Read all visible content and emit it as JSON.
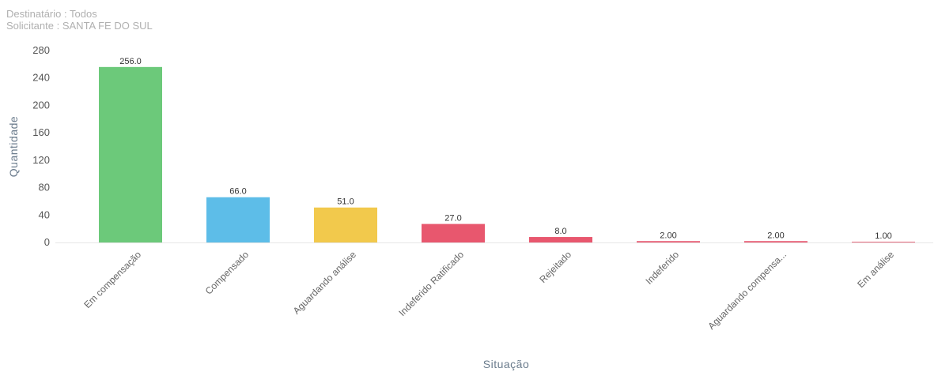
{
  "filters": {
    "recipient_label": "Destinatário",
    "recipient_value": "Todos",
    "requester_label": "Solicitante",
    "requester_value": "SANTA FE DO SUL"
  },
  "chart_data": {
    "type": "bar",
    "categories": [
      "Em compensação",
      "Compensado",
      "Aguardando análise",
      "Indeferido Ratificado",
      "Rejeitado",
      "Indeferido",
      "Aguardando compensa...",
      "Em análise"
    ],
    "values": [
      256.0,
      66.0,
      51.0,
      27.0,
      8.0,
      2.0,
      2.0,
      1.0
    ],
    "data_labels": [
      "256.0",
      "66.0",
      "51.0",
      "27.0",
      "8.0",
      "2.00",
      "2.00",
      "1.00"
    ],
    "colors": [
      "#6cc97a",
      "#5dbde8",
      "#f2c94c",
      "#e8576e",
      "#e8576e",
      "#e8576e",
      "#e8576e",
      "#e8576e"
    ],
    "xlabel": "Situação",
    "ylabel": "Quantidade",
    "ylim": [
      0,
      280
    ],
    "yticks": [
      0,
      40,
      80,
      120,
      160,
      200,
      240,
      280
    ],
    "grid": false,
    "legend": "none"
  }
}
